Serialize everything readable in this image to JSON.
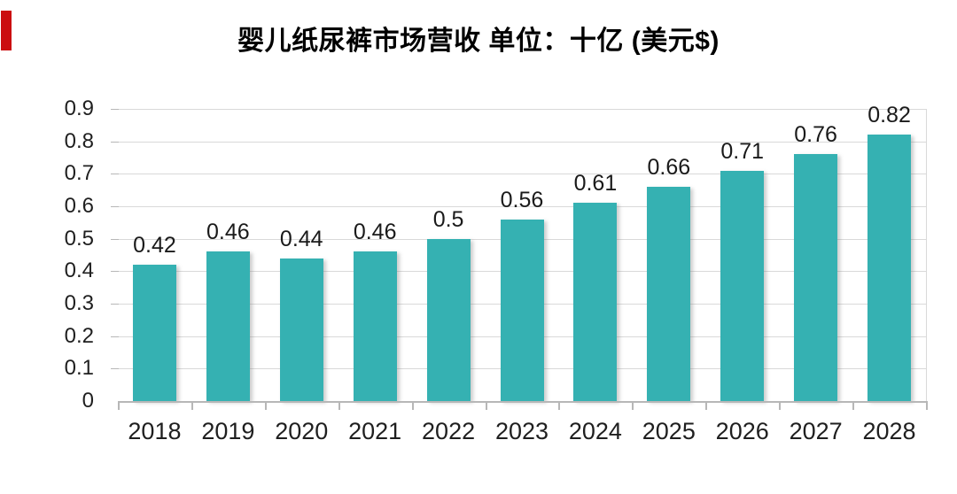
{
  "page": {
    "background": "#ffffff"
  },
  "decorations": {
    "red_mark_color": "#cb0d10"
  },
  "chart_data": {
    "type": "bar",
    "title": "婴儿纸尿裤市场营收 单位：十亿 (美元$)",
    "categories": [
      "2018",
      "2019",
      "2020",
      "2021",
      "2022",
      "2023",
      "2024",
      "2025",
      "2026",
      "2027",
      "2028"
    ],
    "values": [
      0.42,
      0.46,
      0.44,
      0.46,
      0.5,
      0.56,
      0.61,
      0.66,
      0.71,
      0.76,
      0.82
    ],
    "value_labels": [
      "0.42",
      "0.46",
      "0.44",
      "0.46",
      "0.5",
      "0.56",
      "0.61",
      "0.66",
      "0.71",
      "0.76",
      "0.82"
    ],
    "xlabel": "",
    "ylabel": "",
    "ylim": [
      0,
      0.9
    ],
    "y_tick_labels": [
      "0",
      "0.1",
      "0.2",
      "0.3",
      "0.4",
      "0.5",
      "0.6",
      "0.7",
      "0.8",
      "0.9"
    ],
    "grid": true,
    "legend": "none",
    "bar_color": "#35b1b2",
    "gridline_color": "#d9d9d9",
    "axis_color": "#b7b7b7",
    "text_color": "#1f1f1f",
    "title_color": "#000000"
  }
}
